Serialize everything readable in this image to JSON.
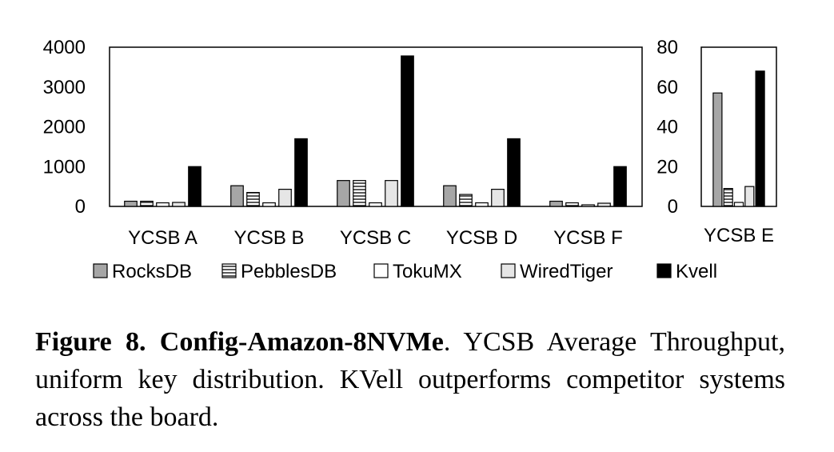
{
  "chart_data": [
    {
      "type": "bar",
      "categories": [
        "YCSB A",
        "YCSB B",
        "YCSB C",
        "YCSB D",
        "YCSB F"
      ],
      "series": [
        {
          "name": "RocksDB",
          "values": [
            130,
            520,
            650,
            520,
            130
          ]
        },
        {
          "name": "PebblesDB",
          "values": [
            130,
            350,
            650,
            300,
            90
          ]
        },
        {
          "name": "TokuMX",
          "values": [
            90,
            90,
            90,
            90,
            40
          ]
        },
        {
          "name": "WiredTiger",
          "values": [
            100,
            430,
            650,
            430,
            80
          ]
        },
        {
          "name": "Kvell",
          "values": [
            1000,
            1700,
            3780,
            1700,
            1000
          ]
        }
      ],
      "yticks": [
        0,
        1000,
        2000,
        3000,
        4000
      ],
      "ytick_labels": [
        "0",
        "1000",
        "2000",
        "3000",
        "4000"
      ],
      "ylim": [
        0,
        4000
      ],
      "xlabel": "",
      "ylabel": ""
    },
    {
      "type": "bar",
      "categories": [
        "YCSB E"
      ],
      "series": [
        {
          "name": "RocksDB",
          "values": [
            57
          ]
        },
        {
          "name": "PebblesDB",
          "values": [
            9
          ]
        },
        {
          "name": "TokuMX",
          "values": [
            2
          ]
        },
        {
          "name": "WiredTiger",
          "values": [
            10
          ]
        },
        {
          "name": "Kvell",
          "values": [
            68
          ]
        }
      ],
      "yticks": [
        0,
        20,
        40,
        60,
        80
      ],
      "ytick_labels": [
        "0",
        "20",
        "40",
        "60",
        "80"
      ],
      "ylim": [
        0,
        80
      ],
      "xlabel": "",
      "ylabel": ""
    }
  ],
  "legend": {
    "position": "bottom",
    "entries": [
      {
        "name": "RocksDB",
        "style": "gray",
        "color": "#a6a6a6"
      },
      {
        "name": "PebblesDB",
        "style": "hlines",
        "color": "#ffffff"
      },
      {
        "name": "TokuMX",
        "style": "white",
        "color": "#ffffff"
      },
      {
        "name": "WiredTiger",
        "style": "lightgray",
        "color": "#e6e6e6"
      },
      {
        "name": "Kvell",
        "style": "black",
        "color": "#000000"
      }
    ]
  },
  "caption": {
    "label": "Figure 8. Config-Amazon-8NVMe",
    "text": ". YCSB Average Throughput, uniform key distribution. KVell outperforms competitor systems across the board."
  }
}
